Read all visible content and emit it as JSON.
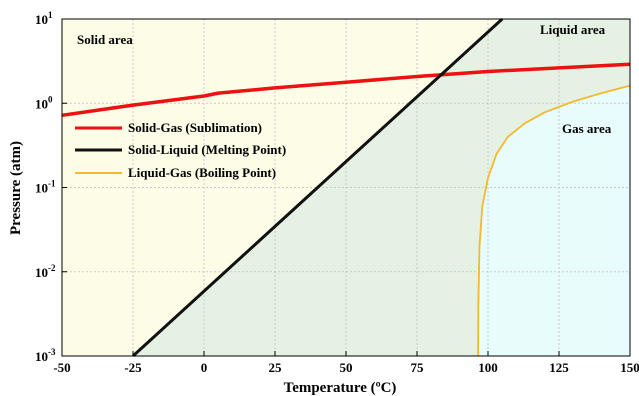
{
  "chart_data": {
    "type": "line",
    "xlabel": "Temperature (ºC)",
    "ylabel": "Pressure (atm)",
    "xlim": [
      -50,
      150
    ],
    "ylim_log10": [
      -3,
      1
    ],
    "y_scale": "log",
    "x_ticks": [
      "-50",
      "-25",
      "0",
      "25",
      "50",
      "75",
      "100",
      "125",
      "150"
    ],
    "y_ticks": [
      {
        "base": "10",
        "exp": "-3"
      },
      {
        "base": "10",
        "exp": "-2"
      },
      {
        "base": "10",
        "exp": "-1"
      },
      {
        "base": "10",
        "exp": "0"
      },
      {
        "base": "10",
        "exp": "1"
      }
    ],
    "grid": true,
    "legend_position": "upper-left",
    "regions": [
      {
        "label": "Solid area",
        "color": "#fdfde7"
      },
      {
        "label": "Liquid area",
        "color": "#e5f2e3"
      },
      {
        "label": "Gas area",
        "color": "#e8fcfc"
      }
    ],
    "series": [
      {
        "name": "Solid-Gas (Sublimation)",
        "color": "#ee1111",
        "x": [
          -50,
          -25,
          0,
          5,
          25,
          50,
          75,
          100,
          125,
          150
        ],
        "y": [
          0.72,
          0.95,
          1.22,
          1.32,
          1.52,
          1.78,
          2.08,
          2.38,
          2.63,
          2.9
        ]
      },
      {
        "name": "Solid-Liquid (Melting Point)",
        "color": "#111111",
        "x": [
          -25,
          105
        ],
        "y": [
          0.001,
          10
        ]
      },
      {
        "name": "Liquid-Gas (Boiling Point)",
        "color": "#f5b82e",
        "x": [
          96.5,
          96.6,
          97,
          98,
          100,
          103,
          107,
          113,
          120,
          130,
          140,
          150
        ],
        "y": [
          0.001,
          0.004,
          0.02,
          0.06,
          0.13,
          0.25,
          0.4,
          0.58,
          0.78,
          1.05,
          1.32,
          1.62
        ]
      }
    ]
  }
}
